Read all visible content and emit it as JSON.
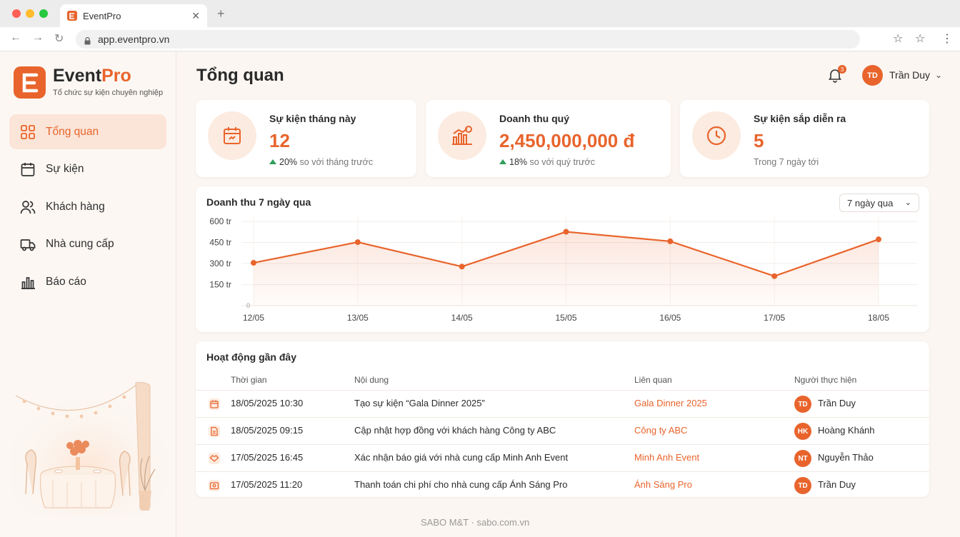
{
  "browser": {
    "tab_title": "EventPro",
    "url": "app.eventpro.vn"
  },
  "sidebar": {
    "logo_letter": "E",
    "brand_part1": "Event",
    "brand_part2": "Pro",
    "tagline": "Tổ chức sự kiện chuyên nghiệp",
    "items": [
      {
        "label": "Tổng quan",
        "icon": "grid-icon",
        "active": true
      },
      {
        "label": "Sự kiện",
        "icon": "calendar-icon",
        "active": false
      },
      {
        "label": "Khách hàng",
        "icon": "users-icon",
        "active": false
      },
      {
        "label": "Nhà cung cấp",
        "icon": "truck-icon",
        "active": false
      },
      {
        "label": "Báo cáo",
        "icon": "bar-chart-icon",
        "active": false
      }
    ]
  },
  "header": {
    "title": "Tổng quan",
    "notification_count": "3",
    "user_initials": "TD",
    "user_name": "Trần Duy"
  },
  "stats": [
    {
      "label": "Sự kiện tháng này",
      "value": "12",
      "change": "20%",
      "change_text": "so với tháng trước",
      "icon": "calendar-icon"
    },
    {
      "label": "Doanh thu quý",
      "value": "2,450,000,000 đ",
      "change": "18%",
      "change_text": "so với quý trước",
      "icon": "revenue-chart-icon"
    },
    {
      "label": "Sự kiện sắp diễn ra",
      "value": "5",
      "change": "",
      "change_text": "Trong 7 ngày tới",
      "icon": "clock-icon"
    }
  ],
  "revenue_chart": {
    "title": "Doanh thu 7 ngày qua",
    "range_label": "7 ngày qua"
  },
  "chart_data": {
    "type": "area",
    "categories": [
      "12/05",
      "13/05",
      "14/05",
      "15/05",
      "16/05",
      "17/05",
      "18/05"
    ],
    "values": [
      305,
      452,
      278,
      526,
      458,
      210,
      472
    ],
    "y_ticks": [
      "150 tr",
      "300 tr",
      "450 tr",
      "600 tr"
    ],
    "y_tick_values": [
      150,
      300,
      450,
      600
    ],
    "ylim": [
      0,
      600
    ],
    "y_zero_label": "0",
    "color": "#e8642c",
    "grid": true
  },
  "activity": {
    "title": "Hoạt động gần đây",
    "columns": [
      "Thời gian",
      "Nội dung",
      "Liên quan",
      "Người thực hiện"
    ],
    "rows": [
      {
        "icon": "calendar-icon",
        "time": "18/05/2025 10:30",
        "content": "Tạo sự kiện “Gala Dinner 2025”",
        "related": "Gala Dinner 2025",
        "initials": "TD",
        "user": "Trần Duy"
      },
      {
        "icon": "document-icon",
        "time": "18/05/2025 09:15",
        "content": "Cập nhật hợp đồng với khách hàng Công ty ABC",
        "related": "Công ty ABC",
        "initials": "HK",
        "user": "Hoàng Khánh"
      },
      {
        "icon": "handshake-icon",
        "time": "17/05/2025 16:45",
        "content": "Xác nhận báo giá với nhà cung cấp Minh Anh Event",
        "related": "Minh Anh Event",
        "initials": "NT",
        "user": "Nguyễn Thảo"
      },
      {
        "icon": "payment-icon",
        "time": "17/05/2025 11:20",
        "content": "Thanh toán chi phí cho nhà cung cấp Ánh Sáng Pro",
        "related": "Ánh Sáng Pro",
        "initials": "TD",
        "user": "Trần Duy"
      }
    ]
  },
  "footer": "SABO M&T · sabo.com.vn"
}
